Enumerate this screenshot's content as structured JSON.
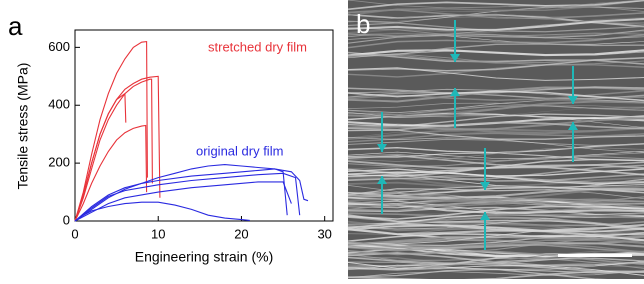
{
  "chart_data": {
    "type": "line",
    "panel_label": "a",
    "x_label": "Engineering strain (%)",
    "y_label": "Tensile stress (MPa)",
    "xlim": [
      0,
      31
    ],
    "ylim": [
      0,
      660
    ],
    "xticks": [
      0,
      10,
      20,
      30
    ],
    "yticks": [
      0,
      200,
      400,
      600
    ],
    "series": [
      {
        "name": "stretched dry film",
        "color": "#e8333a",
        "curves": [
          {
            "x": [
              0,
              1,
              2,
              3,
              4,
              5,
              6,
              7,
              8,
              8.6,
              8.7
            ],
            "values": [
              0,
              100,
              230,
              350,
              440,
              510,
              560,
              600,
              618,
              620,
              150
            ]
          },
          {
            "x": [
              0,
              1,
              2,
              3,
              4,
              5,
              6,
              7,
              8,
              9,
              10,
              10.2
            ],
            "values": [
              0,
              90,
              200,
              300,
              370,
              420,
              455,
              475,
              490,
              497,
              500,
              80
            ]
          },
          {
            "x": [
              0,
              1,
              2,
              3,
              4,
              5,
              6,
              7,
              8,
              9,
              9.2,
              9.3
            ],
            "values": [
              0,
              80,
              180,
              280,
              350,
              400,
              440,
              465,
              480,
              490,
              490,
              130
            ]
          },
          {
            "x": [
              0,
              1,
              2,
              3,
              4,
              5,
              6,
              6.1
            ],
            "values": [
              0,
              90,
              200,
              300,
              370,
              420,
              440,
              340
            ]
          },
          {
            "x": [
              0,
              1,
              2,
              3,
              4,
              5,
              6,
              7,
              8,
              8.5,
              8.6
            ],
            "values": [
              0,
              60,
              130,
              190,
              240,
              280,
              305,
              320,
              328,
              330,
              100
            ]
          }
        ]
      },
      {
        "name": "original dry film",
        "color": "#2a2ae0",
        "curves": [
          {
            "x": [
              0,
              2,
              4,
              6,
              8,
              10,
              12,
              14,
              16,
              18,
              20,
              22,
              24,
              25,
              25.5
            ],
            "values": [
              0,
              40,
              80,
              110,
              130,
              150,
              165,
              180,
              190,
              195,
              190,
              185,
              180,
              170,
              20
            ]
          },
          {
            "x": [
              0,
              2,
              4,
              6,
              8,
              10,
              14,
              18,
              22,
              24,
              26,
              27,
              27.5,
              28
            ],
            "values": [
              0,
              50,
              90,
              115,
              130,
              140,
              155,
              165,
              175,
              180,
              170,
              140,
              75,
              70
            ]
          },
          {
            "x": [
              0,
              2,
              4,
              6,
              10,
              14,
              18,
              22,
              25,
              26.5,
              27
            ],
            "values": [
              0,
              45,
              85,
              105,
              125,
              140,
              150,
              160,
              165,
              150,
              20
            ]
          },
          {
            "x": [
              0,
              2,
              4,
              6,
              10,
              14,
              18,
              22,
              25,
              26
            ],
            "values": [
              0,
              30,
              60,
              80,
              100,
              115,
              125,
              135,
              135,
              60
            ]
          },
          {
            "x": [
              0,
              1,
              2,
              4,
              6,
              8,
              10,
              12,
              14,
              16,
              18,
              20,
              21
            ],
            "values": [
              0,
              20,
              35,
              50,
              60,
              65,
              65,
              55,
              40,
              20,
              10,
              5,
              2
            ]
          }
        ]
      }
    ]
  },
  "image_panel": {
    "label": "b"
  }
}
